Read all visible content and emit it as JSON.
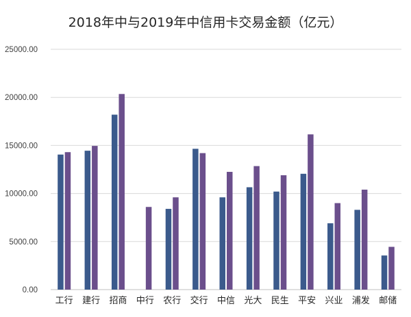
{
  "chart_data": {
    "type": "bar",
    "title": "2018年中与2019年中信用卡交易金额（亿元）",
    "xlabel": "",
    "ylabel": "",
    "ylim": [
      0,
      25000
    ],
    "yticks": [
      "0.00",
      "5000.00",
      "10000.00",
      "15000.00",
      "20000.00",
      "25000.00"
    ],
    "grid": true,
    "legend": "none",
    "categories": [
      "工行",
      "建行",
      "招商",
      "中行",
      "农行",
      "交行",
      "中信",
      "光大",
      "民生",
      "平安",
      "兴业",
      "浦发",
      "邮储"
    ],
    "series": [
      {
        "color": "#3b5a8c",
        "values": [
          14050,
          14450,
          18200,
          null,
          8400,
          14650,
          9600,
          10650,
          10200,
          12050,
          6900,
          8300,
          3550
        ]
      },
      {
        "color": "#6b4f8c",
        "values": [
          14300,
          14950,
          20350,
          8600,
          9600,
          14200,
          12250,
          12850,
          11900,
          16150,
          9000,
          10400,
          4450
        ]
      }
    ]
  }
}
